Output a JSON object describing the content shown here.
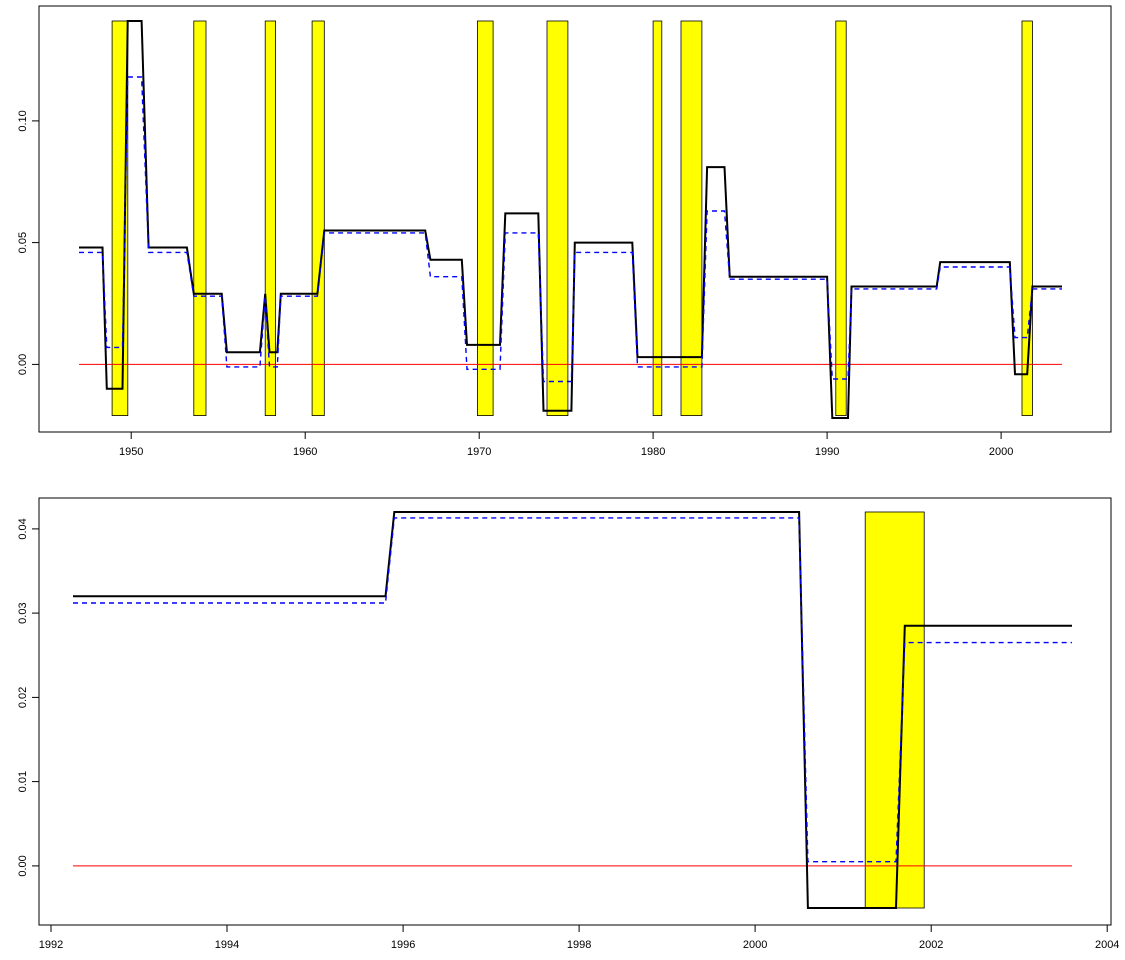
{
  "chart_data": [
    {
      "type": "line",
      "xlim": [
        1947,
        2004
      ],
      "ylim": [
        -0.022,
        0.141
      ],
      "x_ticks": [
        1950,
        1960,
        1970,
        1980,
        1990,
        2000
      ],
      "x_tick_labels": [
        "1950",
        "1960",
        "1970",
        "1980",
        "1990",
        "2000"
      ],
      "y_ticks": [
        0.0,
        0.05,
        0.1
      ],
      "y_tick_labels": [
        "0.00",
        "0.05",
        "0.10"
      ],
      "grid": false,
      "legend": "none",
      "reference_line": {
        "y": 0,
        "color": "#ff0000"
      },
      "shaded_periods": {
        "color": "#ffff00",
        "y_range": [
          -0.021,
          0.141
        ],
        "periods": [
          [
            1948.9,
            1949.8
          ],
          [
            1953.6,
            1954.3
          ],
          [
            1957.7,
            1958.3
          ],
          [
            1960.4,
            1961.1
          ],
          [
            1969.9,
            1970.8
          ],
          [
            1973.9,
            1975.1
          ],
          [
            1980.0,
            1980.5
          ],
          [
            1981.6,
            1982.8
          ],
          [
            1990.5,
            1991.1
          ],
          [
            2001.2,
            2001.8
          ]
        ]
      },
      "series": [
        {
          "style": "solid",
          "color": "#000000",
          "points": [
            [
              1947.0,
              0.048
            ],
            [
              1948.0,
              0.048
            ],
            [
              1948.35,
              0.048
            ],
            [
              1948.6,
              -0.01
            ],
            [
              1949.5,
              -0.01
            ],
            [
              1949.8,
              0.141
            ],
            [
              1950.6,
              0.141
            ],
            [
              1951.0,
              0.048
            ],
            [
              1953.2,
              0.048
            ],
            [
              1953.6,
              0.029
            ],
            [
              1955.2,
              0.029
            ],
            [
              1955.5,
              0.005
            ],
            [
              1957.4,
              0.005
            ],
            [
              1957.7,
              0.029
            ],
            [
              1957.95,
              0.005
            ],
            [
              1958.4,
              0.005
            ],
            [
              1958.6,
              0.029
            ],
            [
              1960.7,
              0.029
            ],
            [
              1961.1,
              0.055
            ],
            [
              1966.9,
              0.055
            ],
            [
              1967.2,
              0.043
            ],
            [
              1969.0,
              0.043
            ],
            [
              1969.3,
              0.008
            ],
            [
              1971.2,
              0.008
            ],
            [
              1971.5,
              0.062
            ],
            [
              1973.4,
              0.062
            ],
            [
              1973.7,
              -0.019
            ],
            [
              1975.3,
              -0.019
            ],
            [
              1975.5,
              0.05
            ],
            [
              1978.8,
              0.05
            ],
            [
              1979.1,
              0.003
            ],
            [
              1982.8,
              0.003
            ],
            [
              1983.1,
              0.081
            ],
            [
              1984.1,
              0.081
            ],
            [
              1984.4,
              0.036
            ],
            [
              1990.0,
              0.036
            ],
            [
              1990.3,
              -0.022
            ],
            [
              1991.2,
              -0.022
            ],
            [
              1991.4,
              0.032
            ],
            [
              1996.3,
              0.032
            ],
            [
              1996.5,
              0.042
            ],
            [
              2000.5,
              0.042
            ],
            [
              2000.8,
              -0.004
            ],
            [
              2001.5,
              -0.004
            ],
            [
              2001.8,
              0.032
            ],
            [
              2003.5,
              0.032
            ]
          ]
        },
        {
          "style": "dashed",
          "color": "#0000ff",
          "points": [
            [
              1947.0,
              0.046
            ],
            [
              1948.35,
              0.046
            ],
            [
              1948.6,
              0.007
            ],
            [
              1949.5,
              0.007
            ],
            [
              1949.8,
              0.118
            ],
            [
              1950.6,
              0.118
            ],
            [
              1951.0,
              0.046
            ],
            [
              1953.2,
              0.046
            ],
            [
              1953.6,
              0.028
            ],
            [
              1955.2,
              0.028
            ],
            [
              1955.5,
              -0.001
            ],
            [
              1957.4,
              -0.001
            ],
            [
              1957.7,
              0.028
            ],
            [
              1957.95,
              -0.001
            ],
            [
              1958.4,
              -0.001
            ],
            [
              1958.6,
              0.028
            ],
            [
              1960.7,
              0.028
            ],
            [
              1961.1,
              0.054
            ],
            [
              1966.9,
              0.054
            ],
            [
              1967.2,
              0.036
            ],
            [
              1969.0,
              0.036
            ],
            [
              1969.3,
              -0.002
            ],
            [
              1971.2,
              -0.002
            ],
            [
              1971.5,
              0.054
            ],
            [
              1973.4,
              0.054
            ],
            [
              1973.7,
              -0.007
            ],
            [
              1975.3,
              -0.007
            ],
            [
              1975.5,
              0.046
            ],
            [
              1978.8,
              0.046
            ],
            [
              1979.1,
              -0.001
            ],
            [
              1982.8,
              -0.001
            ],
            [
              1983.1,
              0.063
            ],
            [
              1984.1,
              0.063
            ],
            [
              1984.4,
              0.035
            ],
            [
              1990.0,
              0.035
            ],
            [
              1990.3,
              -0.006
            ],
            [
              1991.2,
              -0.006
            ],
            [
              1991.4,
              0.031
            ],
            [
              1996.3,
              0.031
            ],
            [
              1996.5,
              0.04
            ],
            [
              2000.5,
              0.04
            ],
            [
              2000.8,
              0.011
            ],
            [
              2001.5,
              0.011
            ],
            [
              2001.8,
              0.031
            ],
            [
              2003.5,
              0.031
            ]
          ]
        }
      ]
    },
    {
      "type": "line",
      "xlim": [
        1992.0,
        2004.0
      ],
      "ylim": [
        -0.0056,
        0.0428
      ],
      "x_ticks": [
        1992,
        1994,
        1996,
        1998,
        2000,
        2002,
        2004
      ],
      "x_tick_labels": [
        "1992",
        "1994",
        "1996",
        "1998",
        "2000",
        "2002",
        "2004"
      ],
      "y_ticks": [
        0.0,
        0.01,
        0.02,
        0.03,
        0.04
      ],
      "y_tick_labels": [
        "0.00",
        "0.01",
        "0.02",
        "0.03",
        "0.04"
      ],
      "grid": false,
      "legend": "none",
      "reference_line": {
        "y": 0,
        "color": "#ff0000"
      },
      "shaded_periods": {
        "color": "#ffff00",
        "y_range": [
          -0.005,
          0.042
        ],
        "periods": [
          [
            2001.25,
            2001.92
          ]
        ]
      },
      "series": [
        {
          "style": "solid",
          "color": "#000000",
          "points": [
            [
              1992.25,
              0.032
            ],
            [
              1995.8,
              0.032
            ],
            [
              1995.9,
              0.042
            ],
            [
              2000.5,
              0.042
            ],
            [
              2000.6,
              -0.005
            ],
            [
              2001.6,
              -0.005
            ],
            [
              2001.7,
              0.0285
            ],
            [
              2003.6,
              0.0285
            ]
          ]
        },
        {
          "style": "dashed",
          "color": "#0000ff",
          "points": [
            [
              1992.25,
              0.0312
            ],
            [
              1995.8,
              0.0312
            ],
            [
              1995.9,
              0.0413
            ],
            [
              2000.5,
              0.0413
            ],
            [
              2000.6,
              0.0005
            ],
            [
              2001.6,
              0.0005
            ],
            [
              2001.7,
              0.0265
            ],
            [
              2003.6,
              0.0265
            ]
          ]
        }
      ]
    }
  ]
}
